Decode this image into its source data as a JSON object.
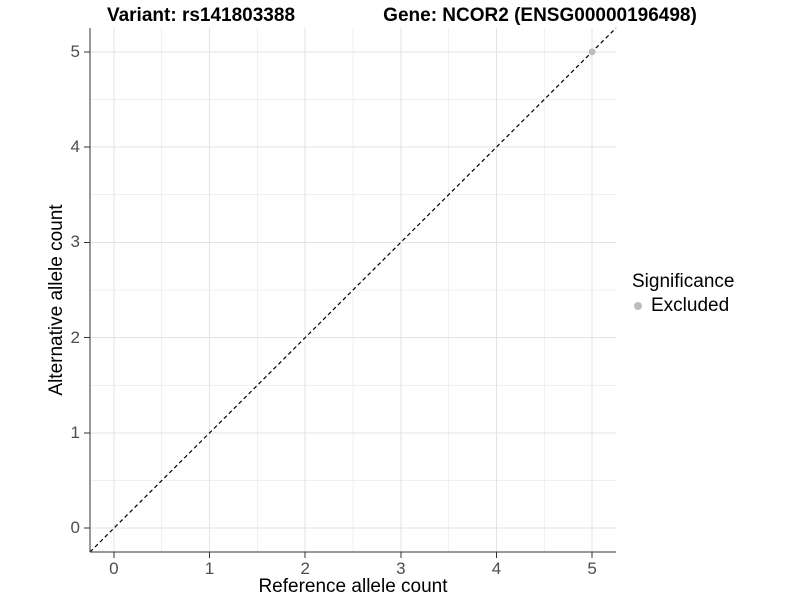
{
  "chart_data": {
    "type": "scatter",
    "titles": {
      "left": "Variant: rs141803388",
      "right": "Gene: NCOR2 (ENSG00000196498)"
    },
    "xlabel": "Reference allele count",
    "ylabel": "Alternative allele count",
    "xlim": [
      -0.25,
      5.25
    ],
    "ylim": [
      -0.25,
      5.25
    ],
    "xticks": [
      0,
      1,
      2,
      3,
      4,
      5
    ],
    "yticks": [
      0,
      1,
      2,
      3,
      4,
      5
    ],
    "minor_xticks": [
      0.5,
      1.5,
      2.5,
      3.5,
      4.5
    ],
    "minor_yticks": [
      0.5,
      1.5,
      2.5,
      3.5,
      4.5
    ],
    "grid": "on",
    "identity_line": {
      "description": "dashed y = x reference line across full panel",
      "from": [
        -0.25,
        -0.25
      ],
      "to": [
        5.25,
        5.25
      ],
      "style": "dashed",
      "color": "#000000"
    },
    "series": [
      {
        "name": "Excluded",
        "color": "#bdbdbd",
        "points": [
          [
            5,
            5
          ]
        ],
        "point_radius": 3.5
      }
    ],
    "legend": {
      "title": "Significance",
      "position": "right",
      "entries": [
        {
          "label": "Excluded",
          "color": "#bdbdbd"
        }
      ]
    },
    "colors": {
      "axis_line": "#333333",
      "tick_mark": "#333333",
      "tick_label": "#4d4d4d",
      "grid_major": "#e3e3e3",
      "grid_minor": "#f0f0f0",
      "background": "#ffffff"
    }
  }
}
